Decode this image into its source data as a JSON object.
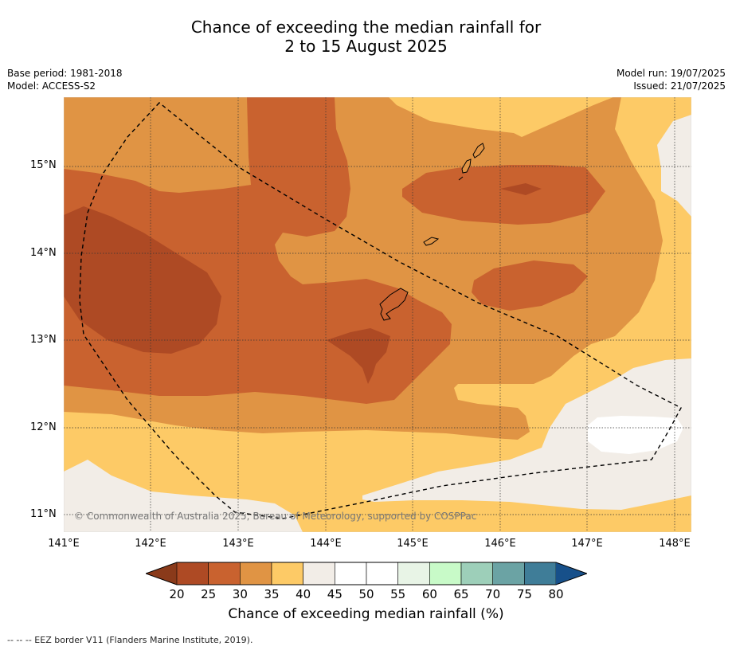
{
  "title": {
    "line1": "Chance of exceeding the median rainfall for",
    "line2": "2 to 15 August 2025"
  },
  "info": {
    "base_period": "Base period: 1981-2018",
    "model": "Model: ACCESS-S2",
    "model_run": "Model run: 19/07/2025",
    "issued": "Issued: 21/07/2025"
  },
  "map": {
    "x_ticks": [
      "141°E",
      "142°E",
      "143°E",
      "144°E",
      "145°E",
      "146°E",
      "147°E",
      "148°E"
    ],
    "y_ticks": [
      "15°N",
      "14°N",
      "13°N",
      "12°N",
      "11°N"
    ],
    "copyright": "© Commonwealth of Australia 2025, Bureau of Meteorology, supported by COSPPac",
    "colors": {
      "lt20": "#8a3a1a",
      "20-25": "#ae4a24",
      "25-30": "#c9622f",
      "30-35": "#e09444",
      "35-40": "#fdca66",
      "40-45": "#f2ede7",
      "45-55": "#ffffff",
      "55-60": "#e8f4e6",
      "60-65": "#c8fac8",
      "65-70": "#9dcfb9",
      "70-75": "#6ba3a4",
      "75-80": "#3f7d98",
      "gt80": "#17508a"
    }
  },
  "colorbar": {
    "labels": [
      "20",
      "25",
      "30",
      "35",
      "40",
      "45",
      "50",
      "55",
      "60",
      "65",
      "70",
      "75",
      "80"
    ],
    "colors": [
      "#ae4a24",
      "#c9622f",
      "#e09444",
      "#fdca66",
      "#f2ede7",
      "#ffffff",
      "#ffffff",
      "#e8f4e6",
      "#c8fac8",
      "#9dcfb9",
      "#6ba3a4",
      "#3f7d98"
    ],
    "under_color": "#8a3a1a",
    "over_color": "#17508a",
    "title": "Chance of exceeding median rainfall (%)"
  },
  "legend": {
    "eez": "--  --  -- EEZ border V11 (Flanders Marine Institute, 2019)."
  }
}
